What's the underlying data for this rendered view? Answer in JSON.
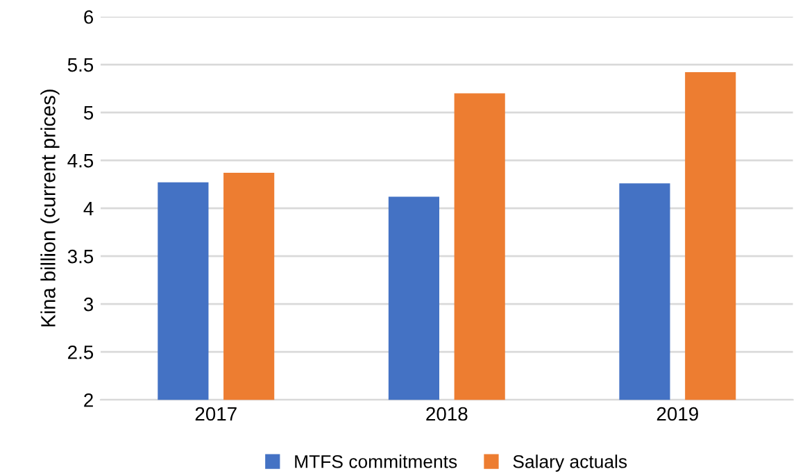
{
  "chart_data": {
    "type": "bar",
    "ylabel": "Kina billion (current prices)",
    "categories": [
      "2017",
      "2018",
      "2019"
    ],
    "series": [
      {
        "name": "MTFS commitments",
        "color": "#4472c4",
        "values": [
          4.27,
          4.12,
          4.26
        ]
      },
      {
        "name": "Salary actuals",
        "color": "#ed7d31",
        "values": [
          4.37,
          5.2,
          5.42
        ]
      }
    ],
    "ylim": [
      2,
      6
    ],
    "yticks": [
      2,
      2.5,
      3,
      3.5,
      4,
      4.5,
      5,
      5.5,
      6
    ],
    "grid": "y",
    "legend": "bottom"
  }
}
